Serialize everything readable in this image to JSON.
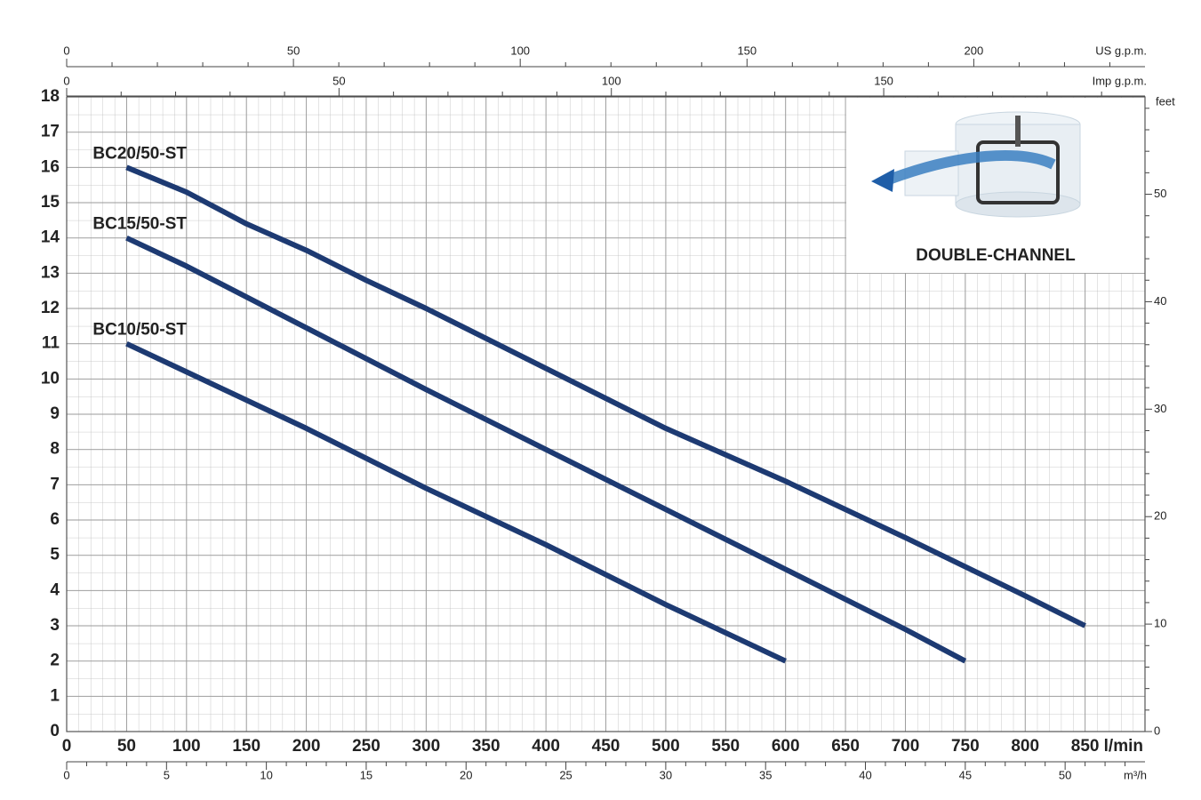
{
  "chart_data": {
    "type": "line",
    "x_label": "l/min",
    "xlim": [
      0,
      900
    ],
    "xticks": [
      0,
      50,
      100,
      150,
      200,
      250,
      300,
      350,
      400,
      450,
      500,
      550,
      600,
      650,
      700,
      750,
      800,
      850
    ],
    "ylim": [
      0,
      18
    ],
    "yticks": [
      0,
      1,
      2,
      3,
      4,
      5,
      6,
      7,
      8,
      9,
      10,
      11,
      12,
      13,
      14,
      15,
      16,
      17,
      18
    ],
    "y2_label": "feet",
    "y2lim": [
      0,
      59.06
    ],
    "y2ticks": [
      0,
      10,
      20,
      30,
      40,
      50
    ],
    "y2minor": [
      2,
      4,
      6,
      8,
      12,
      14,
      16,
      18,
      22,
      24,
      26,
      28,
      32,
      34,
      36,
      38,
      42,
      44,
      46,
      48,
      52,
      54,
      56,
      58
    ],
    "grid": true,
    "top_axes": [
      {
        "label": "US g.p.m.",
        "xlim": [
          0,
          237.75
        ],
        "xticks": [
          0,
          50,
          100,
          150,
          200
        ],
        "minor": [
          10,
          20,
          30,
          40,
          60,
          70,
          80,
          90,
          110,
          120,
          130,
          140,
          160,
          170,
          180,
          190,
          210,
          220,
          230
        ]
      },
      {
        "label": "Imp g.p.m.",
        "xlim": [
          0,
          197.97
        ],
        "xticks": [
          0,
          50,
          100,
          150
        ],
        "minor": [
          10,
          20,
          30,
          40,
          60,
          70,
          80,
          90,
          110,
          120,
          130,
          140,
          160,
          170,
          180,
          190
        ]
      }
    ],
    "bottom_axis2": {
      "label": "m³/h",
      "xlim": [
        0,
        54
      ],
      "xticks": [
        0,
        5,
        10,
        15,
        20,
        25,
        30,
        35,
        40,
        45,
        50
      ],
      "minor": [
        1,
        2,
        3,
        4,
        6,
        7,
        8,
        9,
        11,
        12,
        13,
        14,
        16,
        17,
        18,
        19,
        21,
        22,
        23,
        24,
        26,
        27,
        28,
        29,
        31,
        32,
        33,
        34,
        36,
        37,
        38,
        39,
        41,
        42,
        43,
        44,
        46,
        47,
        48,
        49,
        51,
        52,
        53
      ]
    },
    "series": [
      {
        "name": "BC20/50-ST",
        "color": "#1d3a72",
        "x": [
          50,
          100,
          150,
          200,
          250,
          300,
          400,
          500,
          600,
          700,
          800,
          850
        ],
        "values": [
          16,
          15.3,
          14.4,
          13.65,
          12.8,
          12.0,
          10.3,
          8.6,
          7.1,
          5.5,
          3.85,
          3
        ]
      },
      {
        "name": "BC15/50-ST",
        "color": "#1d3a72",
        "x": [
          50,
          100,
          200,
          300,
          400,
          500,
          600,
          700,
          750
        ],
        "values": [
          14,
          13.2,
          11.45,
          9.7,
          8.0,
          6.3,
          4.6,
          2.9,
          2
        ]
      },
      {
        "name": "BC10/50-ST",
        "color": "#1d3a72",
        "x": [
          50,
          100,
          200,
          300,
          400,
          500,
          600
        ],
        "values": [
          11,
          10.2,
          8.6,
          6.9,
          5.3,
          3.6,
          2
        ]
      }
    ],
    "annotation": "DOUBLE-CHANNEL"
  }
}
